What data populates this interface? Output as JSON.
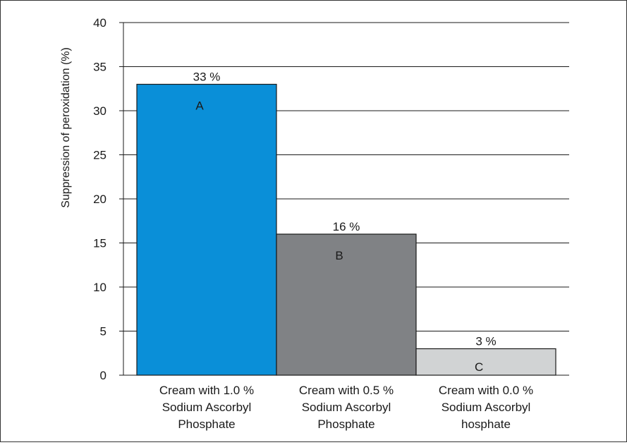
{
  "chart_data": {
    "type": "bar",
    "title": "",
    "xlabel": "",
    "ylabel": "Suppression of peroxidation (%)",
    "ylim": [
      0,
      40
    ],
    "yticks": [
      0,
      5,
      10,
      15,
      20,
      25,
      30,
      35,
      40
    ],
    "grid": true,
    "legend": "none",
    "categories": [
      [
        "Cream with 1.0 %",
        "Sodium Ascorbyl",
        "Phosphate"
      ],
      [
        "Cream with 0.5 %",
        "Sodium Ascorbyl",
        "Phosphate"
      ],
      [
        "Cream with 0.0 %",
        "Sodium Ascorbyl",
        "hosphate"
      ]
    ],
    "values": [
      33,
      16,
      3
    ],
    "data_labels": [
      "33 %",
      "16 %",
      "3 %"
    ],
    "bar_letters": [
      "A",
      "B",
      "C"
    ],
    "colors": [
      "#0a8fd8",
      "#808285",
      "#d1d3d4"
    ],
    "grid_color": "#1a1a1a",
    "bar_border_color": "#1a1a1a"
  }
}
